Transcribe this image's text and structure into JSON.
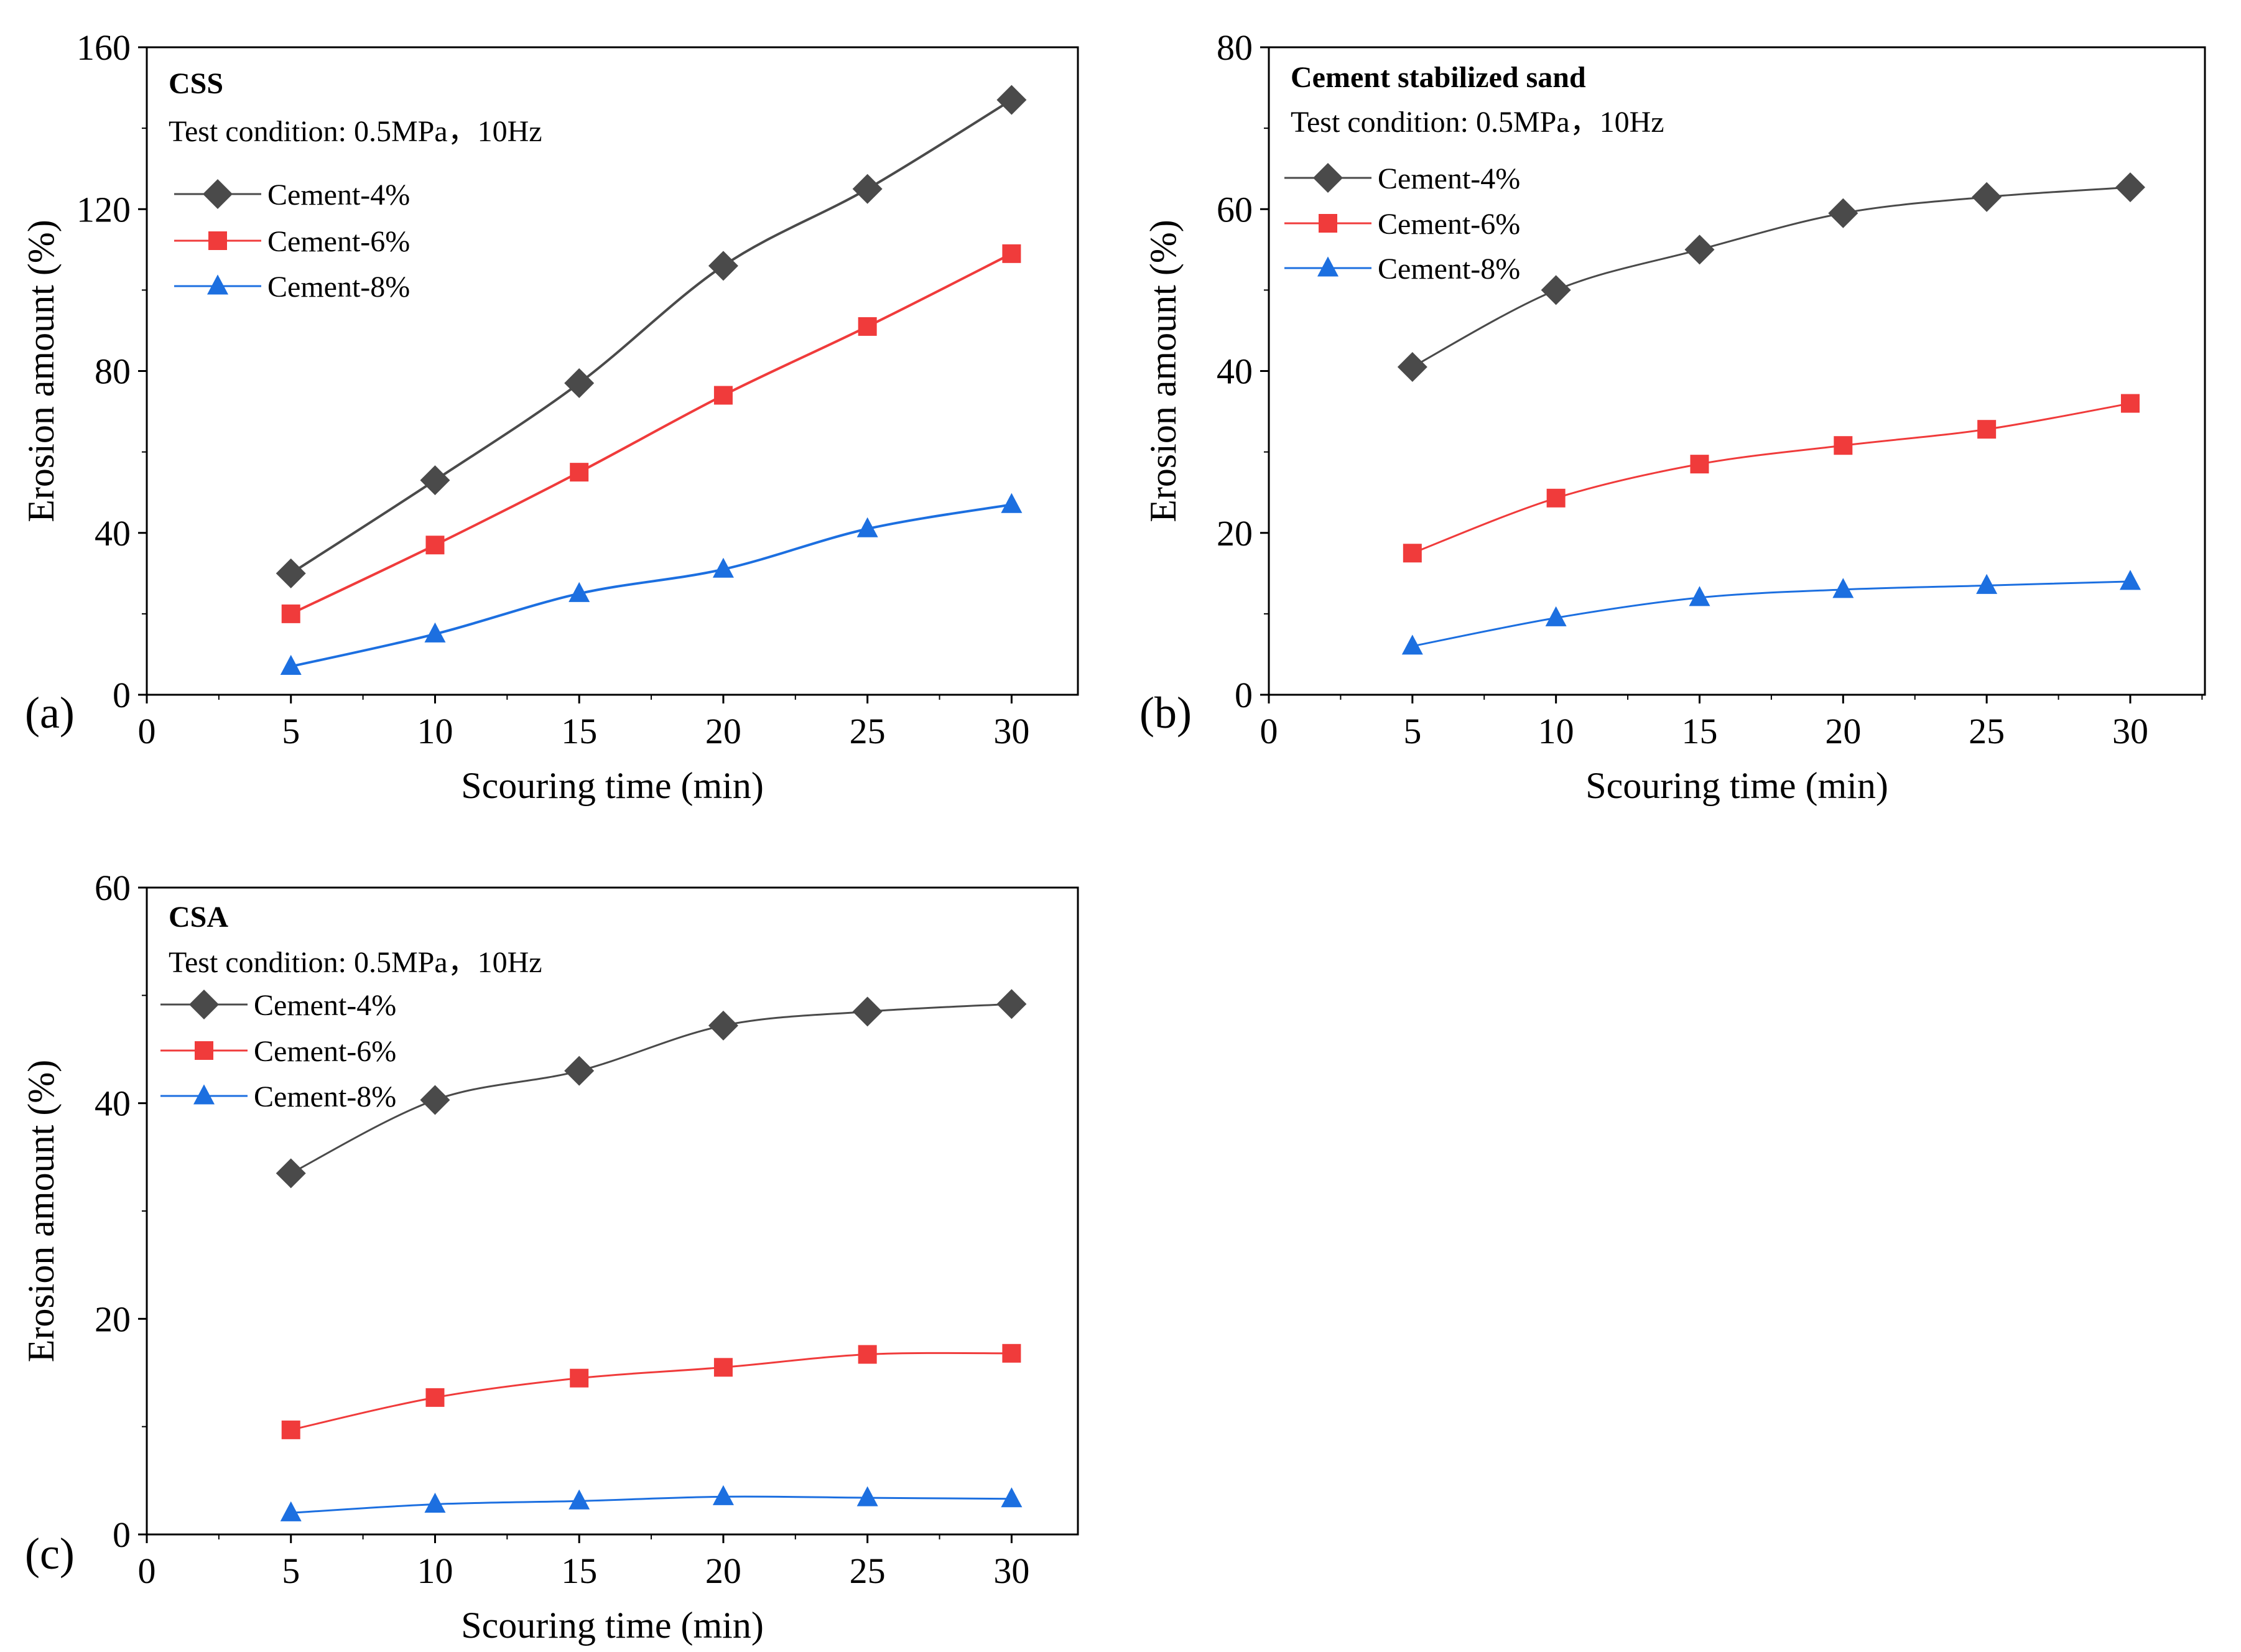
{
  "figure": {
    "colors": {
      "cement4": "#4a4a4a",
      "cement6": "#f03b3b",
      "cement8": "#1c6fe0"
    }
  },
  "chart_data": [
    {
      "type": "line",
      "panel": "(a)",
      "title": "CSS",
      "condition": "Test condition: 0.5MPa，10Hz",
      "xlabel": "Scouring time (min)",
      "ylabel": "Erosion amount (%)",
      "xlim": [
        0,
        32.3
      ],
      "ylim": [
        0,
        160
      ],
      "xticks": [
        0,
        5,
        10,
        15,
        20,
        25,
        30
      ],
      "yticks": [
        0,
        40,
        80,
        120,
        160
      ],
      "x": [
        5,
        10,
        15,
        20,
        25,
        30
      ],
      "series": [
        {
          "name": "Cement-4%",
          "key": "cement4",
          "marker": "diamond",
          "values": [
            30,
            53,
            77,
            106,
            125,
            147
          ]
        },
        {
          "name": "Cement-6%",
          "key": "cement6",
          "marker": "square",
          "values": [
            20,
            37,
            55,
            74,
            91,
            109
          ]
        },
        {
          "name": "Cement-8%",
          "key": "cement8",
          "marker": "triangle",
          "values": [
            7,
            15,
            25,
            31,
            41,
            47
          ]
        }
      ]
    },
    {
      "type": "line",
      "panel": "(b)",
      "title": "Cement stabilized sand",
      "condition": "Test condition: 0.5MPa，10Hz",
      "xlabel": "Scouring time (min)",
      "ylabel": "Erosion amount (%)",
      "xlim": [
        0,
        32.6
      ],
      "ylim": [
        0,
        80
      ],
      "xticks": [
        0,
        5,
        10,
        15,
        20,
        25,
        30
      ],
      "yticks": [
        0,
        20,
        40,
        60,
        80
      ],
      "x": [
        5,
        10,
        15,
        20,
        25,
        30
      ],
      "series": [
        {
          "name": "Cement-4%",
          "key": "cement4",
          "marker": "diamond",
          "values": [
            40.5,
            50,
            55,
            59.5,
            61.5,
            62.7
          ]
        },
        {
          "name": "Cement-6%",
          "key": "cement6",
          "marker": "square",
          "values": [
            17.5,
            24.3,
            28.5,
            30.8,
            32.8,
            36
          ]
        },
        {
          "name": "Cement-8%",
          "key": "cement8",
          "marker": "triangle",
          "values": [
            6,
            9.5,
            12,
            13,
            13.5,
            14
          ]
        }
      ]
    },
    {
      "type": "line",
      "panel": "(c)",
      "title": "CSA",
      "condition": "Test condition: 0.5MPa，10Hz",
      "xlabel": "Scouring time (min)",
      "ylabel": "Erosion amount (%)",
      "xlim": [
        0,
        32.3
      ],
      "ylim": [
        0,
        60
      ],
      "xticks": [
        0,
        5,
        10,
        15,
        20,
        25,
        30
      ],
      "yticks": [
        0,
        20,
        40,
        60
      ],
      "x": [
        5,
        10,
        15,
        20,
        25,
        30
      ],
      "series": [
        {
          "name": "Cement-4%",
          "key": "cement4",
          "marker": "diamond",
          "values": [
            33.5,
            40.3,
            43,
            47.2,
            48.5,
            49.2
          ]
        },
        {
          "name": "Cement-6%",
          "key": "cement6",
          "marker": "square",
          "values": [
            9.7,
            12.7,
            14.5,
            15.5,
            16.7,
            16.8
          ]
        },
        {
          "name": "Cement-8%",
          "key": "cement8",
          "marker": "triangle",
          "values": [
            2,
            2.8,
            3.1,
            3.5,
            3.4,
            3.3
          ]
        }
      ]
    }
  ]
}
